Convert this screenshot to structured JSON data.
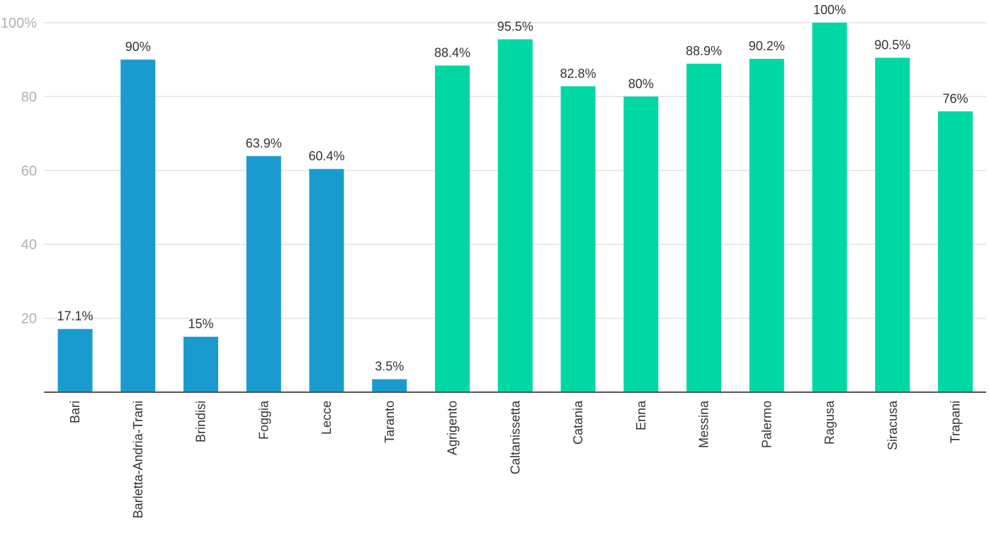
{
  "chart_data": {
    "type": "bar",
    "title": "",
    "xlabel": "",
    "ylabel": "",
    "ylim": [
      0,
      100
    ],
    "grid": true,
    "legend": "none",
    "y_ticks": [
      "20",
      "40",
      "60",
      "80",
      "100%"
    ],
    "y_tick_values": [
      20,
      40,
      60,
      80,
      100
    ],
    "categories": [
      "Bari",
      "Barletta-Andria-Trani",
      "Brindisi",
      "Foggia",
      "Lecce",
      "Taranto",
      "Agrigento",
      "Caltanissetta",
      "Catania",
      "Enna",
      "Messina",
      "Palermo",
      "Ragusa",
      "Siracusa",
      "Trapani"
    ],
    "values": [
      17.1,
      90,
      15,
      63.9,
      60.4,
      3.5,
      88.4,
      95.5,
      82.8,
      80,
      88.9,
      90.2,
      100,
      90.5,
      76
    ],
    "value_labels": [
      "17.1%",
      "90%",
      "15%",
      "63.9%",
      "60.4%",
      "3.5%",
      "88.4%",
      "95.5%",
      "82.8%",
      "80%",
      "88.9%",
      "90.2%",
      "100%",
      "90.5%",
      "76%"
    ],
    "bar_colors": [
      "#1a9bd0",
      "#1a9bd0",
      "#1a9bd0",
      "#1a9bd0",
      "#1a9bd0",
      "#1a9bd0",
      "#00d8a4",
      "#00d8a4",
      "#00d8a4",
      "#00d8a4",
      "#00d8a4",
      "#00d8a4",
      "#00d8a4",
      "#00d8a4",
      "#00d8a4"
    ]
  }
}
